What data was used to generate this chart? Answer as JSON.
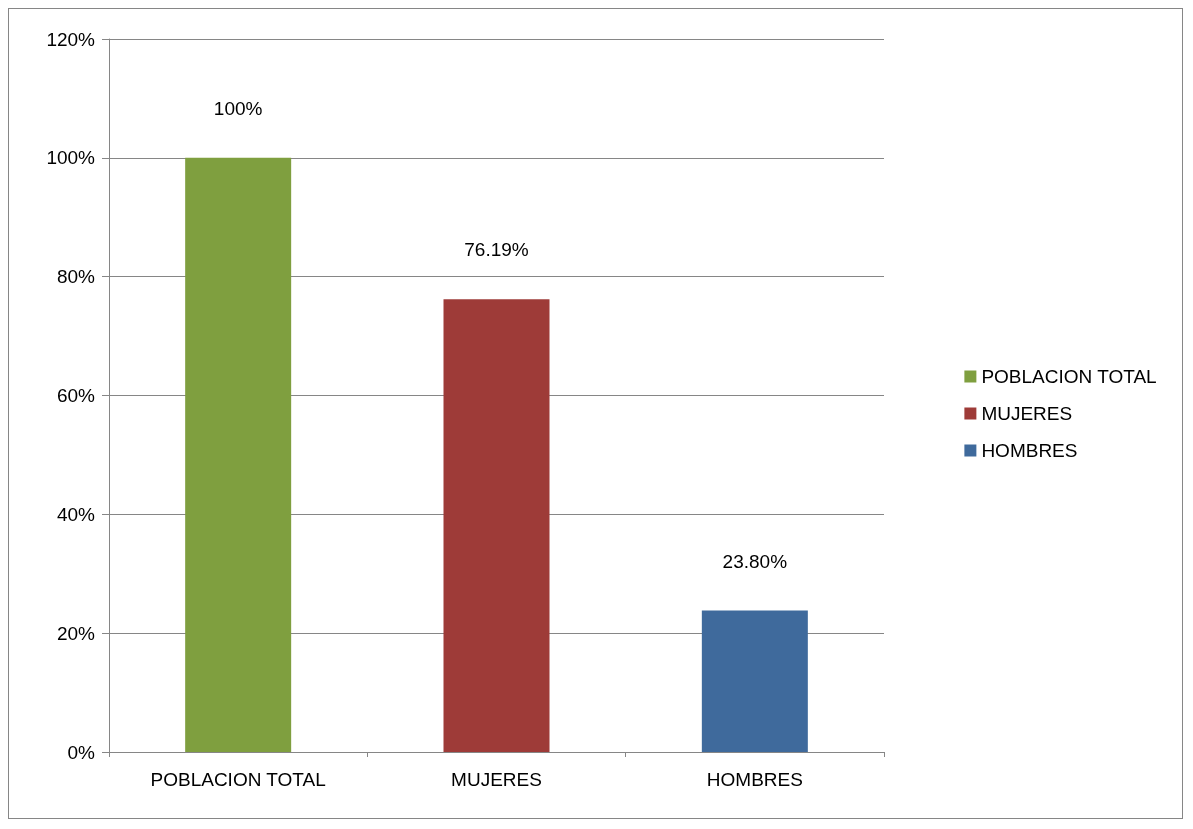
{
  "chart_data": {
    "type": "bar",
    "categories": [
      "POBLACION TOTAL",
      "MUJERES",
      "HOMBRES"
    ],
    "stacked": true,
    "series": [
      {
        "name": "POBLACION TOTAL",
        "color": "#7f9f3f",
        "values": [
          100,
          null,
          null
        ],
        "value_labels": [
          "100%",
          null,
          null
        ]
      },
      {
        "name": "MUJERES",
        "color": "#9e3b38",
        "values": [
          null,
          76.19,
          null
        ],
        "value_labels": [
          null,
          "76.19%",
          null
        ]
      },
      {
        "name": "HOMBRES",
        "color": "#3f6a9c",
        "values": [
          null,
          null,
          23.8
        ],
        "value_labels": [
          null,
          null,
          "23.80%"
        ]
      }
    ],
    "ylim": [
      0,
      120
    ],
    "yticks": [
      {
        "value": 0,
        "label": "0%"
      },
      {
        "value": 20,
        "label": "20%"
      },
      {
        "value": 40,
        "label": "40%"
      },
      {
        "value": 60,
        "label": "60%"
      },
      {
        "value": 80,
        "label": "80%"
      },
      {
        "value": 100,
        "label": "100%"
      },
      {
        "value": 120,
        "label": "120%"
      }
    ],
    "grid": "y",
    "legend": "right"
  }
}
